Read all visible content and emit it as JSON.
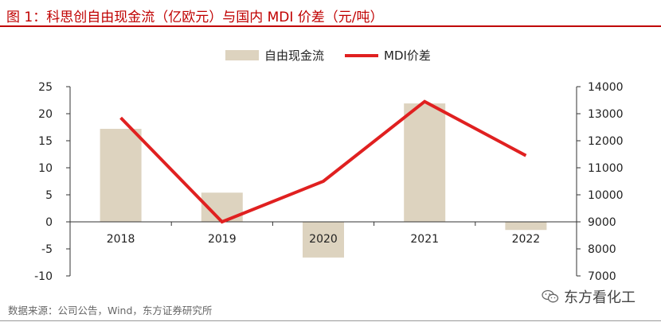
{
  "title": "图 1：科思创自由现金流（亿欧元）与国内 MDI 价差（元/吨）",
  "source": "数据来源：公司公告，Wind，东方证券研究所",
  "watermark": "东方看化工",
  "colors": {
    "title": "#c00000",
    "bar": "#ddd3bf",
    "line": "#e02020",
    "axis": "#333333"
  },
  "chart_data": {
    "type": "bar",
    "categories": [
      "2018",
      "2019",
      "2020",
      "2021",
      "2022"
    ],
    "series": [
      {
        "name": "自由现金流",
        "type": "bar",
        "axis": "left",
        "values": [
          17.2,
          5.4,
          -6.6,
          21.9,
          -1.5
        ]
      },
      {
        "name": "MDI价差",
        "type": "line",
        "axis": "right",
        "values": [
          12850,
          9000,
          10500,
          13450,
          11450
        ]
      }
    ],
    "y_left": {
      "min": -10,
      "max": 25,
      "ticks": [
        -10,
        -5,
        0,
        5,
        10,
        15,
        20,
        25
      ]
    },
    "y_right": {
      "min": 7000,
      "max": 14000,
      "ticks": [
        7000,
        8000,
        9000,
        10000,
        11000,
        12000,
        13000,
        14000
      ]
    },
    "legend_position": "top-center",
    "grid": false
  }
}
